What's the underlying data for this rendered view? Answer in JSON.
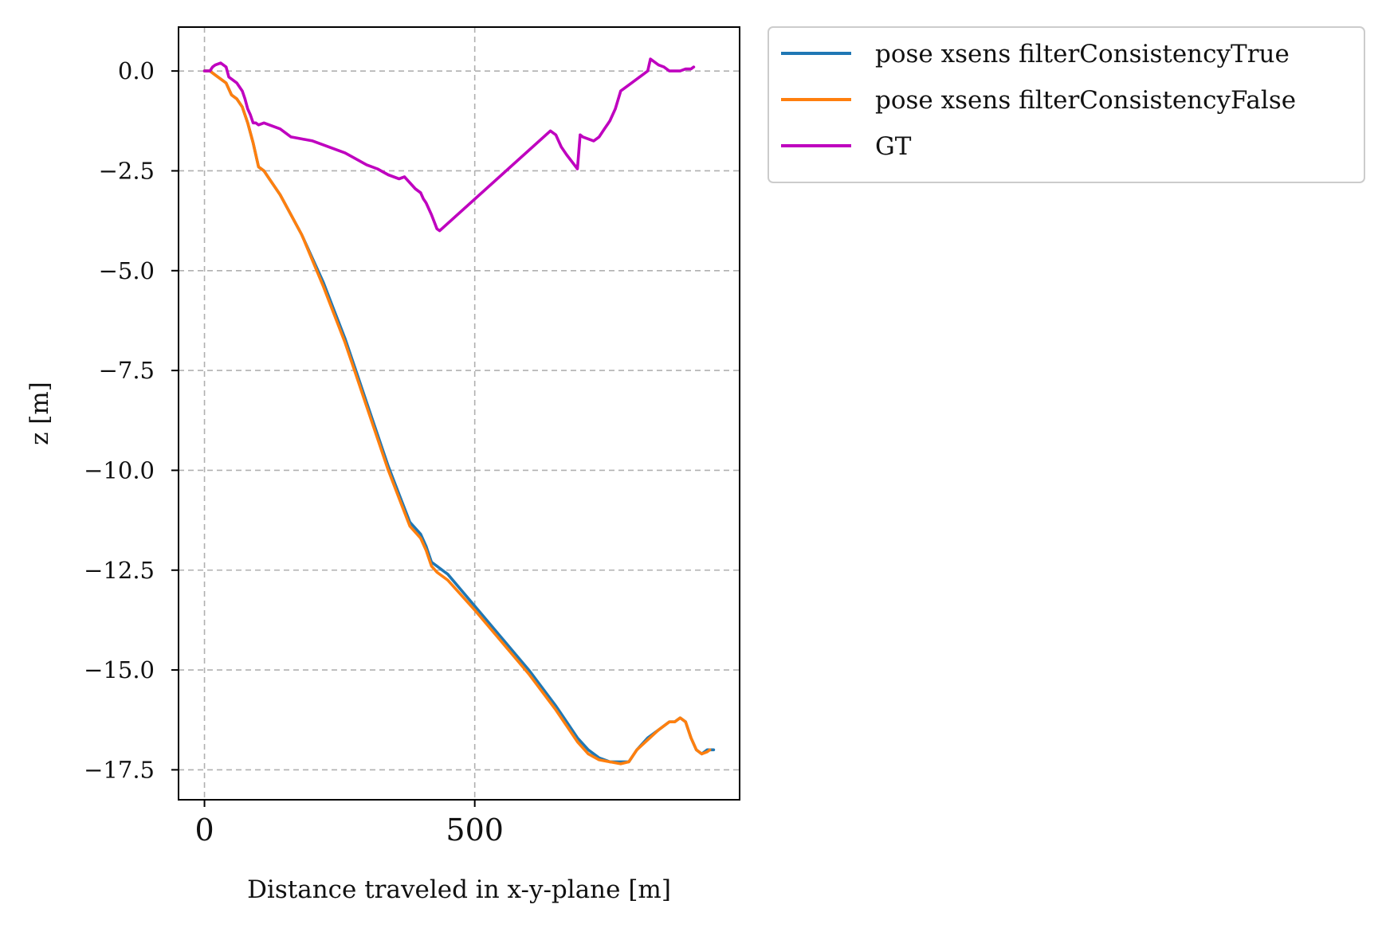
{
  "chart_data": {
    "type": "line",
    "xlabel": "Distance traveled in x-y-plane [m]",
    "ylabel": "z [m]",
    "xlim": [
      -48,
      990
    ],
    "ylim": [
      -18.25,
      1.1
    ],
    "xticks": [
      0,
      500
    ],
    "xtick_labels": [
      "0",
      "500"
    ],
    "yticks": [
      0.0,
      -2.5,
      -5.0,
      -7.5,
      -10.0,
      -12.5,
      -15.0,
      -17.5
    ],
    "ytick_labels": [
      "0.0",
      "−2.5",
      "−5.0",
      "−7.5",
      "−10.0",
      "−12.5",
      "−15.0",
      "−17.5"
    ],
    "grid": true,
    "legend_position": "outside-top-right",
    "series": [
      {
        "name": "pose xsens filterConsistencyTrue",
        "color": "#1f77b4",
        "x": [
          0,
          10,
          20,
          30,
          40,
          50,
          60,
          70,
          80,
          90,
          100,
          110,
          120,
          140,
          160,
          180,
          200,
          220,
          240,
          260,
          280,
          300,
          320,
          340,
          360,
          380,
          400,
          410,
          420,
          430,
          440,
          450,
          500,
          550,
          600,
          650,
          670,
          690,
          710,
          730,
          750,
          770,
          785,
          800,
          820,
          840,
          860,
          870,
          880,
          890,
          900,
          910,
          920,
          930,
          942
        ],
        "y": [
          0.0,
          0.0,
          -0.1,
          -0.2,
          -0.3,
          -0.6,
          -0.7,
          -0.9,
          -1.3,
          -1.8,
          -2.4,
          -2.5,
          -2.7,
          -3.1,
          -3.6,
          -4.1,
          -4.7,
          -5.3,
          -6.0,
          -6.7,
          -7.5,
          -8.3,
          -9.1,
          -9.9,
          -10.6,
          -11.3,
          -11.6,
          -11.9,
          -12.3,
          -12.4,
          -12.5,
          -12.6,
          -13.4,
          -14.2,
          -15.0,
          -15.9,
          -16.3,
          -16.7,
          -17.0,
          -17.2,
          -17.3,
          -17.3,
          -17.3,
          -17.0,
          -16.7,
          -16.5,
          -16.3,
          -16.3,
          -16.2,
          -16.3,
          -16.7,
          -17.0,
          -17.1,
          -17.0,
          -17.0
        ]
      },
      {
        "name": "pose xsens filterConsistencyFalse",
        "color": "#ff7f0e",
        "x": [
          0,
          10,
          20,
          30,
          40,
          50,
          60,
          70,
          80,
          90,
          100,
          110,
          120,
          140,
          160,
          180,
          200,
          220,
          240,
          260,
          280,
          300,
          320,
          340,
          360,
          380,
          400,
          410,
          420,
          430,
          440,
          450,
          500,
          550,
          600,
          650,
          670,
          690,
          710,
          730,
          750,
          770,
          785,
          800,
          820,
          840,
          860,
          870,
          880,
          890,
          900,
          910,
          920,
          930,
          935
        ],
        "y": [
          0.0,
          0.0,
          -0.1,
          -0.2,
          -0.3,
          -0.6,
          -0.7,
          -0.9,
          -1.3,
          -1.8,
          -2.4,
          -2.5,
          -2.7,
          -3.1,
          -3.6,
          -4.1,
          -4.75,
          -5.4,
          -6.1,
          -6.8,
          -7.6,
          -8.4,
          -9.2,
          -10.0,
          -10.7,
          -11.4,
          -11.7,
          -12.0,
          -12.4,
          -12.55,
          -12.65,
          -12.75,
          -13.5,
          -14.3,
          -15.1,
          -16.0,
          -16.4,
          -16.8,
          -17.1,
          -17.25,
          -17.3,
          -17.35,
          -17.3,
          -17.0,
          -16.75,
          -16.5,
          -16.3,
          -16.3,
          -16.2,
          -16.3,
          -16.7,
          -17.0,
          -17.1,
          -17.05,
          -17.0
        ]
      },
      {
        "name": "GT",
        "color": "#bf00bf",
        "x": [
          0,
          10,
          15,
          20,
          30,
          40,
          45,
          50,
          60,
          70,
          75,
          80,
          85,
          90,
          95,
          100,
          110,
          120,
          140,
          160,
          180,
          200,
          220,
          240,
          260,
          280,
          300,
          320,
          340,
          360,
          370,
          380,
          390,
          400,
          405,
          410,
          420,
          430,
          435,
          640,
          650,
          660,
          670,
          690,
          695,
          700,
          710,
          720,
          730,
          740,
          750,
          760,
          770,
          780,
          790,
          800,
          810,
          820,
          825,
          830,
          840,
          850,
          860,
          870,
          880,
          890,
          900,
          905
        ],
        "y": [
          0.0,
          0.0,
          0.1,
          0.15,
          0.2,
          0.1,
          -0.15,
          -0.2,
          -0.3,
          -0.5,
          -0.7,
          -0.95,
          -1.1,
          -1.3,
          -1.3,
          -1.35,
          -1.3,
          -1.35,
          -1.45,
          -1.65,
          -1.7,
          -1.75,
          -1.85,
          -1.95,
          -2.05,
          -2.2,
          -2.35,
          -2.45,
          -2.6,
          -2.7,
          -2.65,
          -2.8,
          -2.95,
          -3.05,
          -3.2,
          -3.3,
          -3.6,
          -3.95,
          -4.0,
          -1.5,
          -1.6,
          -1.9,
          -2.1,
          -2.45,
          -1.6,
          -1.65,
          -1.7,
          -1.75,
          -1.65,
          -1.45,
          -1.25,
          -0.95,
          -0.5,
          -0.4,
          -0.3,
          -0.2,
          -0.1,
          0.0,
          0.3,
          0.25,
          0.15,
          0.1,
          0.0,
          0.0,
          0.0,
          0.05,
          0.05,
          0.1
        ]
      }
    ]
  }
}
